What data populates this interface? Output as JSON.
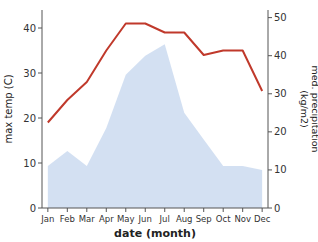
{
  "chart_data": {
    "type": "line",
    "xlabel": "date (month)",
    "ylabel": "max temp (C)",
    "y2label": "med. precipitation\n(kg/m2)",
    "categories": [
      "Jan",
      "Feb",
      "Mar",
      "Apr",
      "May",
      "Jun",
      "Jul",
      "Aug",
      "Sep",
      "Oct",
      "Nov",
      "Dec"
    ],
    "series": [
      {
        "type": "area",
        "axis": "y2",
        "color": "#aec6e8",
        "values": [
          11,
          15,
          11,
          21,
          35,
          40,
          43,
          25,
          18,
          11,
          11,
          10
        ]
      },
      {
        "type": "line",
        "color": "#c0392b",
        "values": [
          19,
          24,
          28,
          35,
          41,
          41,
          39,
          39,
          34,
          35,
          35,
          26
        ]
      }
    ],
    "ylim": [
      0,
      44
    ],
    "yticks": [
      0,
      10,
      20,
      30,
      40
    ],
    "y2lim": [
      0,
      52
    ],
    "y2ticks": [
      0,
      10,
      20,
      30,
      40,
      50
    ]
  }
}
